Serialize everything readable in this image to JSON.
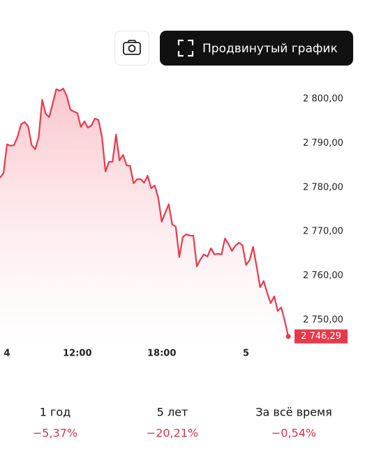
{
  "button": {
    "label": "Продвинутый график"
  },
  "chart_data": {
    "type": "line",
    "color": "#e8394b",
    "categories": [
      null,
      null,
      "4",
      null,
      null,
      null,
      null,
      null,
      null,
      null,
      null,
      null,
      null,
      null,
      null,
      null,
      null,
      null,
      null,
      null,
      null,
      null,
      "12:00",
      null,
      null,
      null,
      null,
      null,
      null,
      null,
      null,
      null,
      null,
      null,
      null,
      null,
      null,
      null,
      null,
      null,
      null,
      null,
      null,
      null,
      null,
      null,
      "18:00",
      null,
      null,
      null,
      null,
      null,
      null,
      null,
      null,
      null,
      null,
      null,
      null,
      null,
      null,
      null,
      null,
      null,
      null,
      null,
      null,
      null,
      null,
      null,
      "5",
      null,
      null,
      null,
      null,
      null,
      null,
      null,
      null,
      null,
      null,
      null,
      null
    ],
    "values": [
      2782.18,
      2783.28,
      2789.75,
      2789.43,
      2789.59,
      2791.48,
      2794.32,
      2794.79,
      2793.85,
      2789.59,
      2788.64,
      2791.32,
      2799.84,
      2796.69,
      2795.9,
      2799.05,
      2802.21,
      2801.89,
      2802.37,
      2800.63,
      2797.63,
      2797.16,
      2796.85,
      2793.69,
      2794.95,
      2793.53,
      2794.01,
      2795.58,
      2795.27,
      2791.48,
      2783.6,
      2785.8,
      2785.8,
      2791.96,
      2786.12,
      2787.38,
      2785.02,
      2784.86,
      2780.91,
      2781.86,
      2781.86,
      2781.07,
      2782.65,
      2779.81,
      2780.44,
      2777.76,
      2772.24,
      2774.29,
      2776.18,
      2771.61,
      2771.14,
      2764.2,
      2768.77,
      2769.4,
      2769.09,
      2769.09,
      2762.15,
      2763.72,
      2764.83,
      2764.35,
      2766.25,
      2764.83,
      2764.98,
      2764.83,
      2768.45,
      2767.19,
      2765.62,
      2766.88,
      2767.51,
      2766.88,
      2762.46,
      2763.56,
      2766.56,
      2762.15,
      2757.41,
      2758.83,
      2756.15,
      2753.79,
      2755.36,
      2752.05,
      2752.84,
      2749.84,
      2746.29
    ],
    "value_labels": [
      null,
      null,
      null,
      null,
      null,
      null,
      null,
      null,
      null,
      null,
      null,
      null,
      null,
      null,
      null,
      null,
      null,
      null,
      null,
      null,
      null,
      null,
      null,
      null,
      null,
      null,
      null,
      null,
      null,
      null,
      null,
      null,
      null,
      null,
      null,
      null,
      null,
      null,
      null,
      null,
      null,
      null,
      null,
      null,
      null,
      null,
      null,
      null,
      null,
      null,
      null,
      null,
      null,
      null,
      null,
      null,
      null,
      null,
      null,
      null,
      null,
      null,
      null,
      null,
      null,
      null,
      null,
      null,
      null,
      null,
      null,
      null,
      null,
      null,
      null,
      null,
      null,
      null,
      null,
      null,
      null,
      null,
      "2 746,29"
    ],
    "ylim": [
      2744,
      2806
    ],
    "yticks": [
      {
        "value": 2750,
        "label": "2 750,00"
      },
      {
        "value": 2760,
        "label": "2 760,00"
      },
      {
        "value": 2770,
        "label": "2 770,00"
      },
      {
        "value": 2780,
        "label": "2 780,00"
      },
      {
        "value": 2790,
        "label": "2 790,00"
      },
      {
        "value": 2800,
        "label": "2 800,00"
      }
    ],
    "grid": false
  },
  "stats": [
    {
      "period": "1 год",
      "change": "−5,37%"
    },
    {
      "period": "5 лет",
      "change": "−20,21%"
    },
    {
      "period": "За всё время",
      "change": "−0,54%"
    }
  ]
}
